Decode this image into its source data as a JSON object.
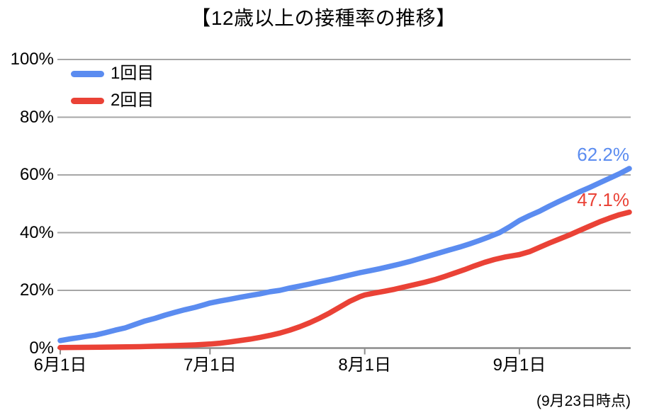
{
  "chart_data": {
    "type": "line",
    "title": "【12歳以上の接種率の推移】",
    "footnote": "(9月23日時点)",
    "legend_position": "top-left",
    "grid": true,
    "ylim": [
      0,
      100
    ],
    "y_ticks": [
      "0%",
      "20%",
      "40%",
      "60%",
      "80%",
      "100%"
    ],
    "x_ticks": [
      {
        "label": "6月1日",
        "day": 0
      },
      {
        "label": "7月1日",
        "day": 30
      },
      {
        "label": "8月1日",
        "day": 61
      },
      {
        "label": "9月1日",
        "day": 92
      }
    ],
    "x_days_total": 114,
    "x_range_note": "daily data from 6月1日 (day 0) to 9月23日 (day 114), values in percent",
    "colors": {
      "grid": "#A6A6A6",
      "axis": "#8C8C8C",
      "text": "#000000"
    },
    "series": [
      {
        "name": "1回目",
        "color": "#5B8CF0",
        "end_label": "62.2%",
        "final_value": 62.2,
        "points": [
          [
            0,
            2.6
          ],
          [
            2,
            3.2
          ],
          [
            4,
            3.7
          ],
          [
            5,
            4.0
          ],
          [
            7,
            4.5
          ],
          [
            9,
            5.3
          ],
          [
            11,
            6.2
          ],
          [
            13,
            7.0
          ],
          [
            15,
            8.2
          ],
          [
            17,
            9.4
          ],
          [
            19,
            10.3
          ],
          [
            21,
            11.4
          ],
          [
            23,
            12.4
          ],
          [
            25,
            13.3
          ],
          [
            27,
            14.1
          ],
          [
            29,
            15.1
          ],
          [
            30,
            15.6
          ],
          [
            32,
            16.3
          ],
          [
            34,
            16.9
          ],
          [
            36,
            17.6
          ],
          [
            38,
            18.2
          ],
          [
            40,
            18.8
          ],
          [
            42,
            19.5
          ],
          [
            44,
            20.0
          ],
          [
            46,
            20.8
          ],
          [
            48,
            21.5
          ],
          [
            50,
            22.2
          ],
          [
            52,
            23.0
          ],
          [
            54,
            23.7
          ],
          [
            56,
            24.5
          ],
          [
            58,
            25.3
          ],
          [
            60,
            26.1
          ],
          [
            62,
            26.8
          ],
          [
            64,
            27.5
          ],
          [
            66,
            28.3
          ],
          [
            68,
            29.1
          ],
          [
            70,
            30.0
          ],
          [
            72,
            31.0
          ],
          [
            74,
            32.0
          ],
          [
            76,
            33.0
          ],
          [
            78,
            34.0
          ],
          [
            80,
            35.0
          ],
          [
            82,
            36.1
          ],
          [
            84,
            37.3
          ],
          [
            86,
            38.6
          ],
          [
            88,
            40.0
          ],
          [
            90,
            42.0
          ],
          [
            92,
            44.2
          ],
          [
            94,
            45.9
          ],
          [
            96,
            47.4
          ],
          [
            98,
            49.2
          ],
          [
            100,
            50.9
          ],
          [
            102,
            52.5
          ],
          [
            104,
            54.1
          ],
          [
            106,
            55.6
          ],
          [
            108,
            57.2
          ],
          [
            110,
            58.8
          ],
          [
            112,
            60.4
          ],
          [
            114,
            62.2
          ]
        ]
      },
      {
        "name": "2回目",
        "color": "#EA4236",
        "end_label": "47.1%",
        "final_value": 47.1,
        "points": [
          [
            0,
            0.2
          ],
          [
            4,
            0.25
          ],
          [
            8,
            0.3
          ],
          [
            12,
            0.4
          ],
          [
            16,
            0.5
          ],
          [
            20,
            0.7
          ],
          [
            24,
            0.9
          ],
          [
            27,
            1.1
          ],
          [
            30,
            1.4
          ],
          [
            32,
            1.7
          ],
          [
            34,
            2.1
          ],
          [
            36,
            2.6
          ],
          [
            38,
            3.1
          ],
          [
            40,
            3.7
          ],
          [
            42,
            4.4
          ],
          [
            44,
            5.2
          ],
          [
            46,
            6.2
          ],
          [
            48,
            7.4
          ],
          [
            50,
            8.8
          ],
          [
            52,
            10.4
          ],
          [
            54,
            12.2
          ],
          [
            56,
            14.2
          ],
          [
            58,
            16.2
          ],
          [
            60,
            17.8
          ],
          [
            61,
            18.4
          ],
          [
            63,
            19.1
          ],
          [
            65,
            19.7
          ],
          [
            67,
            20.4
          ],
          [
            69,
            21.2
          ],
          [
            71,
            22.0
          ],
          [
            73,
            22.8
          ],
          [
            75,
            23.7
          ],
          [
            77,
            24.8
          ],
          [
            79,
            26.0
          ],
          [
            81,
            27.2
          ],
          [
            83,
            28.5
          ],
          [
            85,
            29.7
          ],
          [
            87,
            30.7
          ],
          [
            89,
            31.5
          ],
          [
            91,
            32.1
          ],
          [
            92,
            32.4
          ],
          [
            94,
            33.4
          ],
          [
            96,
            34.9
          ],
          [
            98,
            36.4
          ],
          [
            100,
            37.8
          ],
          [
            102,
            39.2
          ],
          [
            104,
            40.7
          ],
          [
            106,
            42.2
          ],
          [
            108,
            43.7
          ],
          [
            110,
            45.0
          ],
          [
            112,
            46.2
          ],
          [
            114,
            47.1
          ]
        ]
      }
    ]
  }
}
